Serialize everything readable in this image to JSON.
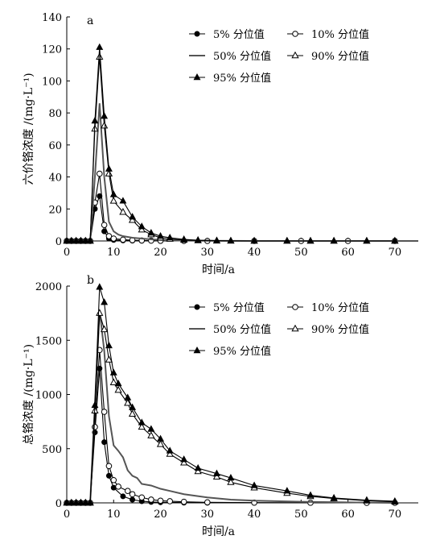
{
  "chart_data": [
    {
      "type": "line",
      "panel_label": "a",
      "xlabel": "时间/a",
      "ylabel": "六价铬浓度 /(mg·L⁻¹)",
      "xlim": [
        0,
        75
      ],
      "ylim": [
        0,
        140
      ],
      "xticks": [
        0,
        10,
        20,
        30,
        40,
        50,
        60,
        70
      ],
      "yticks": [
        0,
        20,
        40,
        60,
        80,
        100,
        120,
        140
      ],
      "legend_position": "top-right",
      "series": [
        {
          "name": "5% 分位值",
          "marker": "filled-circle",
          "x": [
            0,
            1,
            2,
            3,
            4,
            5,
            6,
            7,
            8,
            9,
            10,
            12,
            14,
            16,
            18,
            20,
            25,
            30,
            40,
            50,
            60,
            70
          ],
          "y": [
            0,
            0,
            0,
            0,
            0,
            0,
            20,
            28,
            6,
            1.5,
            0.6,
            0.3,
            0.2,
            0.1,
            0.1,
            0,
            0,
            0,
            0,
            0,
            0,
            0
          ]
        },
        {
          "name": "10% 分位值",
          "marker": "open-circle",
          "x": [
            0,
            1,
            2,
            3,
            4,
            5,
            6,
            7,
            8,
            9,
            10,
            12,
            14,
            16,
            18,
            20,
            25,
            30,
            40,
            50,
            60,
            70
          ],
          "y": [
            0,
            0,
            0,
            0,
            0,
            0,
            24,
            42,
            10,
            3,
            1.5,
            0.8,
            0.5,
            0.3,
            0.2,
            0.1,
            0,
            0,
            0,
            0,
            0,
            0
          ]
        },
        {
          "name": "50% 分位值",
          "marker": "none",
          "x": [
            0,
            5,
            6,
            7,
            8,
            9,
            10,
            11,
            12,
            14,
            16,
            18,
            20,
            22,
            25,
            30,
            40,
            50,
            60,
            70,
            75
          ],
          "y": [
            0,
            0,
            40,
            86,
            40,
            12,
            6,
            4,
            3,
            2,
            1.5,
            1,
            0.6,
            0.4,
            0.2,
            0.1,
            0,
            0,
            0,
            0,
            0
          ]
        },
        {
          "name": "90% 分位值",
          "marker": "open-triangle",
          "x": [
            0,
            1,
            2,
            3,
            4,
            5,
            6,
            7,
            8,
            9,
            10,
            12,
            14,
            16,
            18,
            20,
            22,
            25,
            28,
            32,
            35,
            40,
            47,
            52,
            57,
            64,
            70
          ],
          "y": [
            0,
            0,
            0,
            0,
            0,
            0,
            70,
            115,
            72,
            42,
            25,
            18,
            13,
            7,
            4,
            2,
            1.2,
            0.6,
            0.3,
            0.1,
            0,
            0,
            0,
            0,
            0,
            0,
            0
          ]
        },
        {
          "name": "95% 分位值",
          "marker": "filled-triangle",
          "x": [
            0,
            1,
            2,
            3,
            4,
            5,
            6,
            7,
            8,
            9,
            10,
            12,
            14,
            16,
            18,
            20,
            22,
            25,
            28,
            32,
            35,
            40,
            47,
            52,
            57,
            64,
            70
          ],
          "y": [
            0,
            0,
            0,
            0,
            0,
            0,
            75,
            121,
            78,
            45,
            29,
            25,
            15,
            9,
            5,
            3,
            2,
            1,
            0.5,
            0.2,
            0.1,
            0,
            0,
            0,
            0,
            0,
            0
          ]
        }
      ]
    },
    {
      "type": "line",
      "panel_label": "b",
      "xlabel": "时间/a",
      "ylabel": "总铬浓度 /(mg·L⁻¹)",
      "xlim": [
        0,
        75
      ],
      "ylim": [
        0,
        2000
      ],
      "xticks": [
        0,
        10,
        20,
        30,
        40,
        50,
        60,
        70
      ],
      "yticks": [
        0,
        500,
        1000,
        1500,
        2000
      ],
      "legend_position": "top-right",
      "series": [
        {
          "name": "5% 分位值",
          "marker": "filled-circle",
          "x": [
            0,
            1,
            2,
            3,
            4,
            5,
            6,
            7,
            8,
            9,
            10,
            12,
            14,
            16,
            18,
            20,
            25,
            30,
            40,
            52,
            64,
            70
          ],
          "y": [
            0,
            0,
            0,
            0,
            0,
            0,
            650,
            1240,
            560,
            250,
            140,
            60,
            30,
            15,
            8,
            5,
            2,
            1,
            0,
            0,
            0,
            0
          ]
        },
        {
          "name": "10% 分位值",
          "marker": "open-circle",
          "x": [
            0,
            1,
            2,
            3,
            4,
            5,
            6,
            7,
            8,
            9,
            10,
            11,
            13,
            14,
            16,
            18,
            20,
            22,
            25,
            30,
            40,
            52,
            64,
            70
          ],
          "y": [
            0,
            0,
            0,
            0,
            0,
            0,
            700,
            1410,
            840,
            340,
            210,
            150,
            110,
            80,
            50,
            30,
            20,
            15,
            10,
            5,
            2,
            1,
            0,
            0
          ]
        },
        {
          "name": "50% 分位值",
          "marker": "none",
          "x": [
            0,
            5,
            6,
            7,
            8,
            9,
            10,
            11,
            12,
            13,
            14,
            15,
            16,
            18,
            20,
            22,
            25,
            30,
            35,
            40,
            50,
            60,
            70
          ],
          "y": [
            0,
            0,
            900,
            1780,
            1400,
            800,
            530,
            480,
            420,
            300,
            250,
            230,
            175,
            160,
            130,
            110,
            80,
            50,
            30,
            20,
            10,
            5,
            0
          ]
        },
        {
          "name": "90% 分位值",
          "marker": "open-triangle",
          "x": [
            0,
            1,
            2,
            3,
            4,
            5,
            6,
            7,
            8,
            9,
            10,
            11,
            13,
            14,
            16,
            18,
            20,
            22,
            25,
            28,
            32,
            35,
            40,
            47,
            52,
            57,
            64,
            70
          ],
          "y": [
            0,
            0,
            0,
            0,
            0,
            0,
            850,
            1750,
            1600,
            1320,
            1110,
            1040,
            920,
            820,
            700,
            620,
            540,
            450,
            370,
            290,
            240,
            190,
            140,
            90,
            60,
            40,
            20,
            10
          ]
        },
        {
          "name": "95% 分位值",
          "marker": "filled-triangle",
          "x": [
            0,
            1,
            2,
            3,
            4,
            5,
            6,
            7,
            8,
            9,
            10,
            11,
            13,
            14,
            16,
            18,
            20,
            22,
            25,
            28,
            32,
            35,
            40,
            47,
            52,
            57,
            64,
            70
          ],
          "y": [
            0,
            0,
            0,
            0,
            0,
            0,
            900,
            1990,
            1850,
            1450,
            1200,
            1100,
            970,
            880,
            740,
            680,
            590,
            480,
            400,
            320,
            270,
            230,
            160,
            110,
            70,
            45,
            25,
            15
          ]
        }
      ]
    }
  ]
}
